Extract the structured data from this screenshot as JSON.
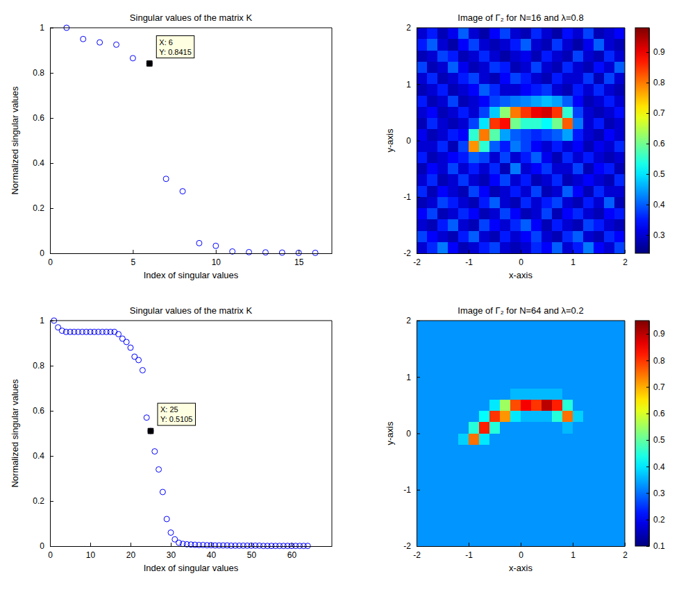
{
  "chart_data": [
    {
      "type": "scatter",
      "title": "Singular values of the matrix K",
      "x_label": "Index of singular values",
      "y_label": "Normalized singular values",
      "x": [
        1,
        2,
        3,
        4,
        5,
        6,
        7,
        8,
        9,
        10,
        11,
        12,
        13,
        14,
        15,
        16
      ],
      "values": [
        1.0,
        0.95,
        0.935,
        0.925,
        0.865,
        0.8415,
        0.33,
        0.275,
        0.045,
        0.033,
        0.008,
        0.005,
        0.004,
        0.003,
        0.002,
        0.002
      ],
      "xlim": [
        0,
        17
      ],
      "ylim": [
        0,
        1
      ],
      "xticks": [
        0,
        5,
        10,
        15
      ],
      "yticks": [
        0,
        0.2,
        0.4,
        0.6,
        0.8,
        1
      ],
      "marker": "circle",
      "color": "#0000ff",
      "annotations": [
        {
          "x": 6,
          "y": 0.8415,
          "text": [
            "X: 6",
            "Y: 0.8415"
          ],
          "marker": "square",
          "color": "#000000"
        }
      ]
    },
    {
      "type": "heatmap",
      "title": "Image of Γ₂ for N=16 and λ=0.8",
      "x_label": "x-axis",
      "y_label": "y-axis",
      "xlim": [
        -2,
        2
      ],
      "ylim": [
        -2,
        2
      ],
      "xticks": [
        -2,
        -1,
        0,
        1,
        2
      ],
      "yticks": [
        -2,
        -1,
        0,
        1,
        2
      ],
      "cells": [
        [
          0.3,
          0.35,
          0.28,
          0.32,
          0.4,
          0.3,
          0.27,
          0.33,
          0.38,
          0.3,
          0.28,
          0.36,
          0.3,
          0.27,
          0.34,
          0.3,
          0.38,
          0.28,
          0.3,
          0.33
        ],
        [
          0.35,
          0.4,
          0.3,
          0.27,
          0.33,
          0.38,
          0.3,
          0.28,
          0.3,
          0.35,
          0.4,
          0.3,
          0.28,
          0.37,
          0.3,
          0.27,
          0.32,
          0.4,
          0.3,
          0.28
        ],
        [
          0.28,
          0.3,
          0.38,
          0.35,
          0.28,
          0.3,
          0.36,
          0.3,
          0.27,
          0.3,
          0.32,
          0.28,
          0.35,
          0.3,
          0.28,
          0.38,
          0.3,
          0.28,
          0.36,
          0.3
        ],
        [
          0.38,
          0.28,
          0.3,
          0.4,
          0.32,
          0.28,
          0.3,
          0.37,
          0.35,
          0.28,
          0.3,
          0.38,
          0.3,
          0.28,
          0.36,
          0.3,
          0.28,
          0.34,
          0.3,
          0.4
        ],
        [
          0.3,
          0.36,
          0.28,
          0.3,
          0.35,
          0.38,
          0.3,
          0.28,
          0.33,
          0.38,
          0.35,
          0.3,
          0.28,
          0.35,
          0.3,
          0.3,
          0.37,
          0.28,
          0.38,
          0.3
        ],
        [
          0.28,
          0.3,
          0.35,
          0.28,
          0.3,
          0.33,
          0.4,
          0.36,
          0.3,
          0.3,
          0.33,
          0.35,
          0.37,
          0.3,
          0.28,
          0.35,
          0.3,
          0.36,
          0.3,
          0.28
        ],
        [
          0.35,
          0.28,
          0.3,
          0.38,
          0.28,
          0.3,
          0.33,
          0.38,
          0.4,
          0.42,
          0.43,
          0.45,
          0.47,
          0.45,
          0.4,
          0.33,
          0.28,
          0.3,
          0.35,
          0.3
        ],
        [
          0.3,
          0.33,
          0.28,
          0.3,
          0.35,
          0.3,
          0.38,
          0.48,
          0.62,
          0.8,
          0.85,
          0.9,
          0.92,
          0.85,
          0.55,
          0.38,
          0.3,
          0.28,
          0.3,
          0.34
        ],
        [
          0.28,
          0.36,
          0.3,
          0.28,
          0.3,
          0.38,
          0.5,
          0.85,
          0.88,
          0.6,
          0.55,
          0.55,
          0.52,
          0.6,
          0.82,
          0.42,
          0.3,
          0.35,
          0.28,
          0.3
        ],
        [
          0.32,
          0.28,
          0.3,
          0.35,
          0.33,
          0.55,
          0.8,
          0.58,
          0.45,
          0.4,
          0.38,
          0.36,
          0.38,
          0.4,
          0.45,
          0.35,
          0.3,
          0.28,
          0.33,
          0.3
        ],
        [
          0.3,
          0.3,
          0.36,
          0.28,
          0.38,
          0.78,
          0.55,
          0.4,
          0.35,
          0.42,
          0.38,
          0.33,
          0.3,
          0.35,
          0.3,
          0.33,
          0.28,
          0.32,
          0.3,
          0.36
        ],
        [
          0.35,
          0.28,
          0.3,
          0.33,
          0.35,
          0.4,
          0.38,
          0.3,
          0.38,
          0.3,
          0.35,
          0.4,
          0.32,
          0.28,
          0.36,
          0.3,
          0.35,
          0.3,
          0.28,
          0.3
        ],
        [
          0.28,
          0.33,
          0.3,
          0.38,
          0.3,
          0.35,
          0.3,
          0.36,
          0.28,
          0.42,
          0.3,
          0.33,
          0.37,
          0.3,
          0.3,
          0.38,
          0.28,
          0.33,
          0.35,
          0.28
        ],
        [
          0.3,
          0.36,
          0.28,
          0.3,
          0.37,
          0.3,
          0.28,
          0.33,
          0.38,
          0.3,
          0.35,
          0.28,
          0.3,
          0.36,
          0.28,
          0.3,
          0.33,
          0.3,
          0.28,
          0.36
        ],
        [
          0.36,
          0.28,
          0.33,
          0.3,
          0.28,
          0.38,
          0.33,
          0.28,
          0.3,
          0.35,
          0.3,
          0.38,
          0.28,
          0.3,
          0.4,
          0.33,
          0.28,
          0.36,
          0.3,
          0.3
        ],
        [
          0.28,
          0.3,
          0.38,
          0.35,
          0.3,
          0.28,
          0.35,
          0.4,
          0.3,
          0.28,
          0.36,
          0.3,
          0.35,
          0.38,
          0.3,
          0.28,
          0.35,
          0.3,
          0.4,
          0.28
        ],
        [
          0.33,
          0.38,
          0.28,
          0.3,
          0.36,
          0.33,
          0.28,
          0.3,
          0.38,
          0.33,
          0.28,
          0.3,
          0.38,
          0.28,
          0.33,
          0.36,
          0.3,
          0.28,
          0.33,
          0.35
        ],
        [
          0.3,
          0.28,
          0.35,
          0.4,
          0.3,
          0.28,
          0.38,
          0.33,
          0.3,
          0.36,
          0.4,
          0.33,
          0.28,
          0.35,
          0.3,
          0.28,
          0.38,
          0.35,
          0.3,
          0.28
        ],
        [
          0.38,
          0.33,
          0.3,
          0.28,
          0.35,
          0.4,
          0.3,
          0.28,
          0.35,
          0.3,
          0.33,
          0.38,
          0.3,
          0.28,
          0.36,
          0.4,
          0.3,
          0.28,
          0.36,
          0.33
        ],
        [
          0.3,
          0.36,
          0.42,
          0.33,
          0.28,
          0.3,
          0.35,
          0.38,
          0.3,
          0.28,
          0.3,
          0.36,
          0.33,
          0.4,
          0.3,
          0.35,
          0.42,
          0.33,
          0.3,
          0.38
        ]
      ],
      "colorbar": {
        "range": [
          0.24,
          0.98
        ],
        "ticks": [
          0.3,
          0.4,
          0.5,
          0.6,
          0.7,
          0.8,
          0.9
        ]
      }
    },
    {
      "type": "scatter",
      "title": "Singular values of the matrix K",
      "x_label": "Index of singular values",
      "y_label": "Normalized singular values",
      "x": [
        1,
        2,
        3,
        4,
        5,
        6,
        7,
        8,
        9,
        10,
        11,
        12,
        13,
        14,
        15,
        16,
        17,
        18,
        19,
        20,
        21,
        22,
        23,
        24,
        25,
        26,
        27,
        28,
        29,
        30,
        31,
        32,
        33,
        34,
        35,
        36,
        37,
        38,
        39,
        40,
        41,
        42,
        43,
        44,
        45,
        46,
        47,
        48,
        49,
        50,
        51,
        52,
        53,
        54,
        55,
        56,
        57,
        58,
        59,
        60,
        61,
        62,
        63,
        64
      ],
      "values": [
        1.0,
        0.97,
        0.955,
        0.95,
        0.95,
        0.95,
        0.95,
        0.95,
        0.95,
        0.95,
        0.95,
        0.95,
        0.95,
        0.95,
        0.95,
        0.95,
        0.94,
        0.92,
        0.905,
        0.88,
        0.84,
        0.825,
        0.78,
        0.57,
        0.5105,
        0.42,
        0.34,
        0.24,
        0.12,
        0.06,
        0.03,
        0.015,
        0.01,
        0.008,
        0.007,
        0.006,
        0.005,
        0.005,
        0.004,
        0.004,
        0.003,
        0.003,
        0.003,
        0.003,
        0.002,
        0.002,
        0.002,
        0.002,
        0.002,
        0.002,
        0.002,
        0.002,
        0.001,
        0.001,
        0.001,
        0.001,
        0.001,
        0.001,
        0.001,
        0.001,
        0.001,
        0.001,
        0.001,
        0.001
      ],
      "xlim": [
        0,
        70
      ],
      "ylim": [
        0,
        1
      ],
      "xticks": [
        0,
        10,
        20,
        30,
        40,
        50,
        60
      ],
      "yticks": [
        0,
        0.2,
        0.4,
        0.6,
        0.8,
        1
      ],
      "marker": "circle",
      "color": "#0000ff",
      "annotations": [
        {
          "x": 25,
          "y": 0.5105,
          "text": [
            "X: 25",
            "Y: 0.5105"
          ],
          "marker": "square",
          "color": "#000000"
        }
      ]
    },
    {
      "type": "heatmap",
      "title": "Image of Γ₂ for N=64 and λ=0.2",
      "x_label": "x-axis",
      "y_label": "y-axis",
      "xlim": [
        -2,
        2
      ],
      "ylim": [
        -2,
        2
      ],
      "xticks": [
        -2,
        -1,
        0,
        1,
        2
      ],
      "yticks": [
        -2,
        -1,
        0,
        1,
        2
      ],
      "cells": [
        [
          0.33,
          0.33,
          0.33,
          0.33,
          0.33,
          0.33,
          0.33,
          0.33,
          0.33,
          0.33,
          0.33,
          0.33,
          0.33,
          0.33,
          0.33,
          0.33,
          0.33,
          0.33,
          0.33,
          0.33
        ],
        [
          0.33,
          0.33,
          0.33,
          0.33,
          0.33,
          0.33,
          0.33,
          0.33,
          0.33,
          0.33,
          0.33,
          0.33,
          0.33,
          0.33,
          0.33,
          0.33,
          0.33,
          0.33,
          0.33,
          0.33
        ],
        [
          0.33,
          0.33,
          0.33,
          0.33,
          0.33,
          0.33,
          0.33,
          0.33,
          0.33,
          0.33,
          0.33,
          0.33,
          0.33,
          0.33,
          0.33,
          0.33,
          0.33,
          0.33,
          0.33,
          0.33
        ],
        [
          0.33,
          0.33,
          0.33,
          0.33,
          0.33,
          0.33,
          0.33,
          0.33,
          0.33,
          0.33,
          0.33,
          0.33,
          0.33,
          0.33,
          0.33,
          0.33,
          0.33,
          0.33,
          0.33,
          0.33
        ],
        [
          0.33,
          0.33,
          0.33,
          0.33,
          0.33,
          0.33,
          0.33,
          0.33,
          0.33,
          0.33,
          0.33,
          0.33,
          0.33,
          0.33,
          0.33,
          0.33,
          0.33,
          0.33,
          0.33,
          0.33
        ],
        [
          0.33,
          0.33,
          0.33,
          0.33,
          0.33,
          0.33,
          0.33,
          0.33,
          0.33,
          0.33,
          0.33,
          0.33,
          0.33,
          0.33,
          0.33,
          0.33,
          0.33,
          0.33,
          0.33,
          0.33
        ],
        [
          0.33,
          0.33,
          0.33,
          0.33,
          0.33,
          0.33,
          0.33,
          0.33,
          0.33,
          0.36,
          0.36,
          0.36,
          0.36,
          0.36,
          0.33,
          0.33,
          0.33,
          0.33,
          0.33,
          0.33
        ],
        [
          0.33,
          0.33,
          0.33,
          0.33,
          0.33,
          0.33,
          0.33,
          0.4,
          0.55,
          0.78,
          0.85,
          0.8,
          0.9,
          0.82,
          0.45,
          0.33,
          0.33,
          0.33,
          0.33,
          0.33
        ],
        [
          0.33,
          0.33,
          0.33,
          0.33,
          0.33,
          0.33,
          0.42,
          0.8,
          0.72,
          0.4,
          0.36,
          0.36,
          0.36,
          0.45,
          0.75,
          0.38,
          0.33,
          0.33,
          0.33,
          0.33
        ],
        [
          0.33,
          0.33,
          0.33,
          0.33,
          0.33,
          0.45,
          0.82,
          0.45,
          0.33,
          0.33,
          0.33,
          0.33,
          0.33,
          0.33,
          0.36,
          0.33,
          0.33,
          0.33,
          0.33,
          0.33
        ],
        [
          0.33,
          0.33,
          0.33,
          0.33,
          0.38,
          0.75,
          0.4,
          0.33,
          0.33,
          0.33,
          0.33,
          0.33,
          0.33,
          0.33,
          0.33,
          0.33,
          0.33,
          0.33,
          0.33,
          0.33
        ],
        [
          0.33,
          0.33,
          0.33,
          0.33,
          0.33,
          0.33,
          0.33,
          0.33,
          0.33,
          0.33,
          0.33,
          0.33,
          0.33,
          0.33,
          0.33,
          0.33,
          0.33,
          0.33,
          0.33,
          0.33
        ],
        [
          0.33,
          0.33,
          0.33,
          0.33,
          0.33,
          0.33,
          0.33,
          0.33,
          0.33,
          0.33,
          0.33,
          0.33,
          0.33,
          0.33,
          0.33,
          0.33,
          0.33,
          0.33,
          0.33,
          0.33
        ],
        [
          0.33,
          0.33,
          0.33,
          0.33,
          0.33,
          0.33,
          0.33,
          0.33,
          0.33,
          0.33,
          0.33,
          0.33,
          0.33,
          0.33,
          0.33,
          0.33,
          0.33,
          0.33,
          0.33,
          0.33
        ],
        [
          0.33,
          0.33,
          0.33,
          0.33,
          0.33,
          0.33,
          0.33,
          0.33,
          0.33,
          0.33,
          0.33,
          0.33,
          0.33,
          0.33,
          0.33,
          0.33,
          0.33,
          0.33,
          0.33,
          0.33
        ],
        [
          0.33,
          0.33,
          0.33,
          0.33,
          0.33,
          0.33,
          0.33,
          0.33,
          0.33,
          0.33,
          0.33,
          0.33,
          0.33,
          0.33,
          0.33,
          0.33,
          0.33,
          0.33,
          0.33,
          0.33
        ],
        [
          0.33,
          0.33,
          0.33,
          0.33,
          0.33,
          0.33,
          0.33,
          0.33,
          0.33,
          0.33,
          0.33,
          0.33,
          0.33,
          0.33,
          0.33,
          0.33,
          0.33,
          0.33,
          0.33,
          0.33
        ],
        [
          0.33,
          0.33,
          0.33,
          0.33,
          0.33,
          0.33,
          0.33,
          0.33,
          0.33,
          0.33,
          0.33,
          0.33,
          0.33,
          0.33,
          0.33,
          0.33,
          0.33,
          0.33,
          0.33,
          0.33
        ],
        [
          0.33,
          0.33,
          0.33,
          0.33,
          0.33,
          0.33,
          0.33,
          0.33,
          0.33,
          0.33,
          0.33,
          0.33,
          0.33,
          0.33,
          0.33,
          0.33,
          0.33,
          0.33,
          0.33,
          0.33
        ],
        [
          0.33,
          0.33,
          0.33,
          0.33,
          0.33,
          0.33,
          0.33,
          0.33,
          0.33,
          0.33,
          0.33,
          0.33,
          0.33,
          0.33,
          0.33,
          0.33,
          0.33,
          0.33,
          0.33,
          0.33
        ]
      ],
      "colorbar": {
        "range": [
          0.1,
          0.95
        ],
        "ticks": [
          0.1,
          0.2,
          0.3,
          0.4,
          0.5,
          0.6,
          0.7,
          0.8,
          0.9
        ]
      }
    }
  ]
}
